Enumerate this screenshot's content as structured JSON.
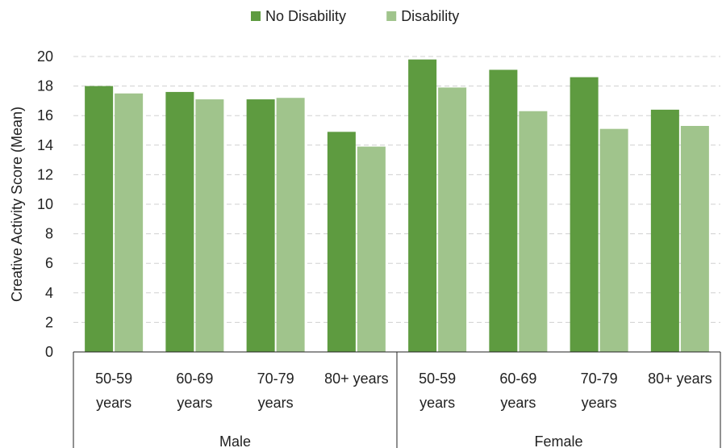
{
  "chart_data": {
    "type": "bar",
    "title": "",
    "ylabel": "Creative Activity Score (Mean)",
    "xlabel": "",
    "ylim": [
      0,
      20
    ],
    "yticks": [
      0,
      2,
      4,
      6,
      8,
      10,
      12,
      14,
      16,
      18,
      20
    ],
    "grid": true,
    "legend_position": "top-center",
    "groups": [
      {
        "name": "Male",
        "categories": [
          [
            "50-59",
            "years"
          ],
          [
            "60-69",
            "years"
          ],
          [
            "70-79",
            "years"
          ],
          [
            "80+ years"
          ]
        ]
      },
      {
        "name": "Female",
        "categories": [
          [
            "50-59",
            "years"
          ],
          [
            "60-69",
            "years"
          ],
          [
            "70-79",
            "years"
          ],
          [
            "80+ years"
          ]
        ]
      }
    ],
    "series": [
      {
        "name": "No Disability",
        "color": "#5e9b40",
        "values": [
          18.0,
          17.6,
          17.1,
          14.9,
          19.8,
          19.1,
          18.6,
          16.4
        ]
      },
      {
        "name": "Disability",
        "color": "#a0c48c",
        "values": [
          17.5,
          17.1,
          17.2,
          13.9,
          17.9,
          16.3,
          15.1,
          15.3
        ]
      }
    ]
  }
}
